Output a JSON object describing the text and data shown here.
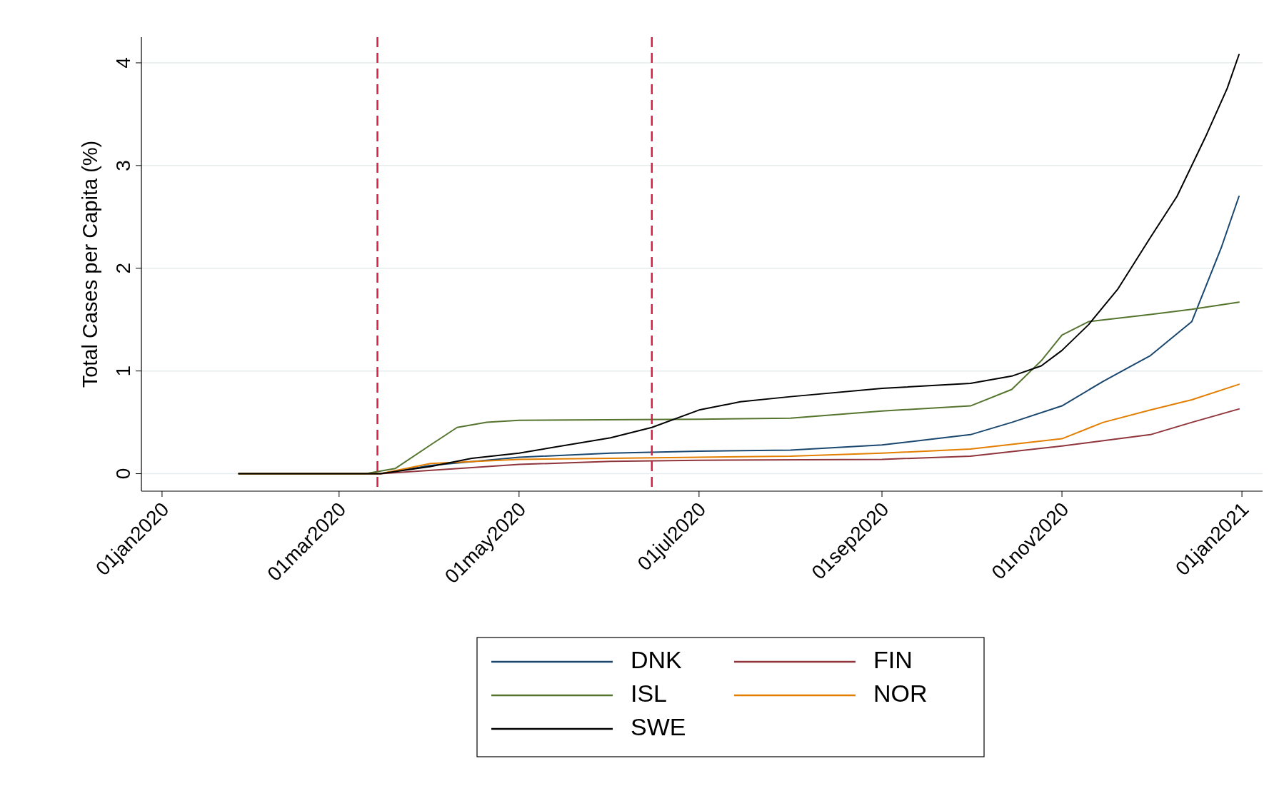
{
  "chart_data": {
    "type": "line",
    "ylabel": "Total Cases per Capita (%)",
    "xlim": [
      "2019-12-25",
      "2021-01-08"
    ],
    "ylim": [
      -0.17,
      4.25
    ],
    "xticks": [
      {
        "value": "2020-01-01",
        "label": "01jan2020"
      },
      {
        "value": "2020-03-01",
        "label": "01mar2020"
      },
      {
        "value": "2020-05-01",
        "label": "01may2020"
      },
      {
        "value": "2020-07-01",
        "label": "01jul2020"
      },
      {
        "value": "2020-09-01",
        "label": "01sep2020"
      },
      {
        "value": "2020-11-01",
        "label": "01nov2020"
      },
      {
        "value": "2021-01-01",
        "label": "01jan2021"
      }
    ],
    "yticks": [
      0,
      1,
      2,
      3,
      4
    ],
    "grid": "y",
    "legend": "bottom",
    "line_style": "solid",
    "marker": "none",
    "ref_lines": [
      {
        "axis": "x",
        "value": "2020-03-14",
        "color": "#d62045",
        "line_style": "dashed"
      },
      {
        "axis": "x",
        "value": "2020-06-15",
        "color": "#d62045",
        "line_style": "dashed"
      }
    ],
    "series": [
      {
        "name": "DNK",
        "color": "#1a476f",
        "x": [
          "2020-01-27",
          "2020-03-15",
          "2020-04-01",
          "2020-05-01",
          "2020-06-01",
          "2020-07-01",
          "2020-08-01",
          "2020-09-01",
          "2020-10-01",
          "2020-10-15",
          "2020-11-01",
          "2020-11-15",
          "2020-12-01",
          "2020-12-15",
          "2020-12-25",
          "2020-12-31"
        ],
        "values": [
          0,
          0,
          0.08,
          0.16,
          0.2,
          0.22,
          0.23,
          0.28,
          0.38,
          0.5,
          0.66,
          0.9,
          1.15,
          1.48,
          2.2,
          2.7
        ]
      },
      {
        "name": "FIN",
        "color": "#90353b",
        "x": [
          "2020-01-27",
          "2020-03-15",
          "2020-04-15",
          "2020-05-01",
          "2020-06-01",
          "2020-07-01",
          "2020-09-01",
          "2020-10-01",
          "2020-11-01",
          "2020-12-01",
          "2020-12-15",
          "2020-12-31"
        ],
        "values": [
          0,
          0,
          0.06,
          0.09,
          0.12,
          0.13,
          0.14,
          0.17,
          0.27,
          0.38,
          0.5,
          0.63
        ]
      },
      {
        "name": "ISL",
        "color": "#55752f",
        "x": [
          "2020-01-27",
          "2020-03-10",
          "2020-03-20",
          "2020-04-01",
          "2020-04-10",
          "2020-04-20",
          "2020-05-01",
          "2020-07-01",
          "2020-08-01",
          "2020-09-01",
          "2020-10-01",
          "2020-10-15",
          "2020-10-25",
          "2020-11-01",
          "2020-11-10",
          "2020-12-01",
          "2020-12-15",
          "2020-12-31"
        ],
        "values": [
          0,
          0,
          0.05,
          0.28,
          0.45,
          0.5,
          0.52,
          0.53,
          0.54,
          0.61,
          0.66,
          0.82,
          1.1,
          1.35,
          1.48,
          1.55,
          1.6,
          1.67
        ]
      },
      {
        "name": "NOR",
        "color": "#e37e00",
        "x": [
          "2020-01-27",
          "2020-03-15",
          "2020-04-01",
          "2020-05-01",
          "2020-06-01",
          "2020-07-01",
          "2020-08-01",
          "2020-09-01",
          "2020-10-01",
          "2020-11-01",
          "2020-11-15",
          "2020-12-01",
          "2020-12-15",
          "2020-12-31"
        ],
        "values": [
          0,
          0,
          0.1,
          0.14,
          0.15,
          0.16,
          0.17,
          0.2,
          0.24,
          0.34,
          0.5,
          0.62,
          0.72,
          0.87
        ]
      },
      {
        "name": "SWE",
        "color": "#000000",
        "x": [
          "2020-01-27",
          "2020-03-01",
          "2020-03-15",
          "2020-04-01",
          "2020-04-15",
          "2020-05-01",
          "2020-06-01",
          "2020-06-15",
          "2020-07-01",
          "2020-07-15",
          "2020-08-01",
          "2020-09-01",
          "2020-10-01",
          "2020-10-15",
          "2020-10-25",
          "2020-11-01",
          "2020-11-10",
          "2020-11-20",
          "2020-12-01",
          "2020-12-10",
          "2020-12-20",
          "2020-12-27",
          "2020-12-31"
        ],
        "values": [
          0,
          0,
          0,
          0.07,
          0.15,
          0.2,
          0.35,
          0.45,
          0.62,
          0.7,
          0.75,
          0.83,
          0.88,
          0.95,
          1.05,
          1.2,
          1.45,
          1.8,
          2.3,
          2.7,
          3.3,
          3.75,
          4.08
        ]
      }
    ]
  }
}
